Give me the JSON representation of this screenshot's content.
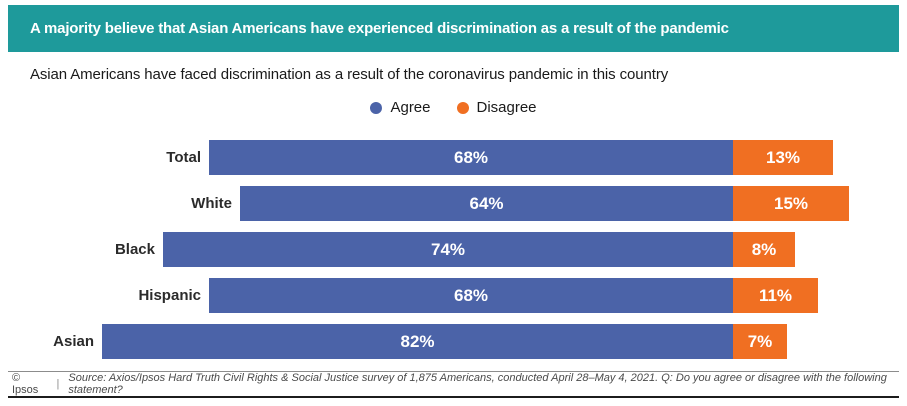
{
  "colors": {
    "banner_bg": "#1E9A9B",
    "agree": "#4B63A8",
    "disagree": "#F06F22"
  },
  "chart_data": {
    "type": "bar",
    "orientation": "horizontal",
    "stacked": true,
    "layout_hint": "Agree segments right-aligned to a shared divider; Disagree segments extend right of it; category labels sit at the left end of each Agree bar",
    "title": "A majority believe that Asian Americans have experienced discrimination as a result of the pandemic",
    "subtitle": "Asian Americans have faced discrimination as a result of the coronavirus pandemic in this country",
    "categories": [
      "Total",
      "White",
      "Black",
      "Hispanic",
      "Asian"
    ],
    "series": [
      {
        "name": "Agree",
        "color": "#4B63A8",
        "values": [
          68,
          64,
          74,
          68,
          82
        ]
      },
      {
        "name": "Disagree",
        "color": "#F06F22",
        "values": [
          13,
          15,
          8,
          11,
          7
        ]
      }
    ],
    "value_suffix": "%",
    "value_labels": "inside, white, bold",
    "legend_position": "top-center",
    "grid": false,
    "xlim": [
      0,
      100
    ]
  },
  "footer": {
    "copyright": "© Ipsos",
    "separator": "|",
    "source": "Source: Axios/Ipsos Hard Truth Civil Rights & Social Justice survey of 1,875 Americans, conducted April 28–May 4, 2021. Q: Do you agree or disagree with the following statement?"
  }
}
